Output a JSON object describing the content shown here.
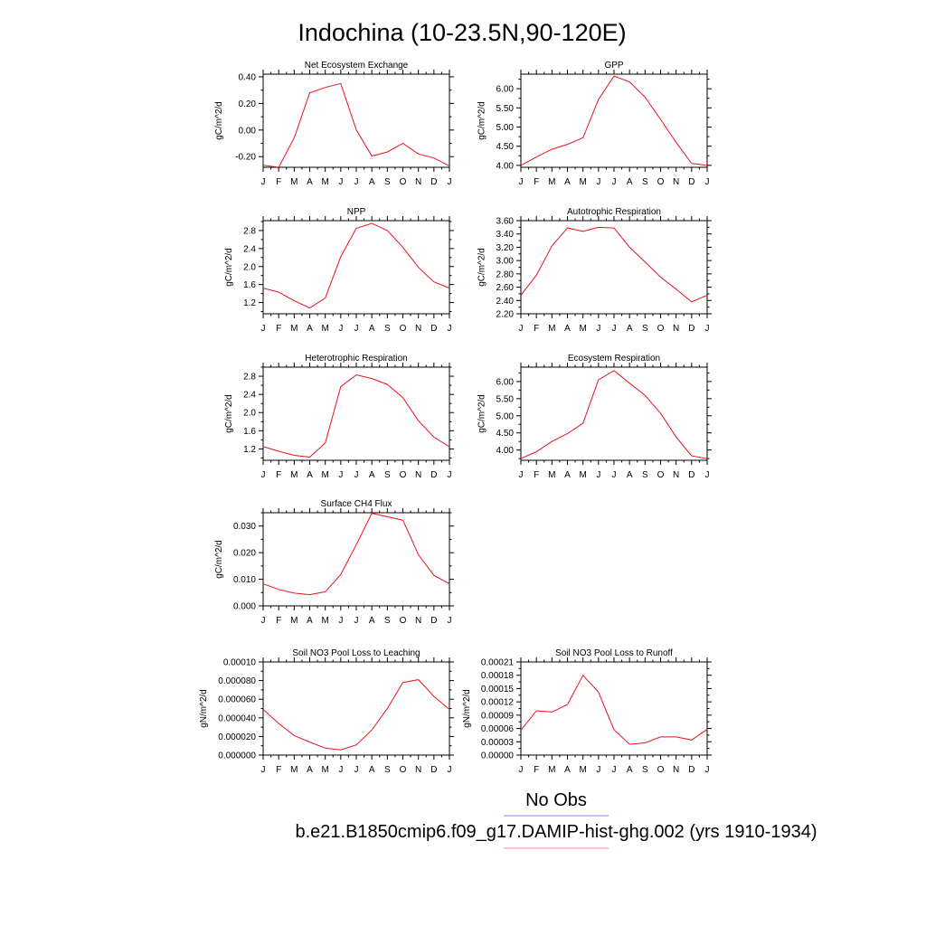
{
  "figure": {
    "title": "Indochina (10-23.5N,90-120E)",
    "month_ticks": [
      "J",
      "F",
      "M",
      "A",
      "M",
      "J",
      "J",
      "A",
      "S",
      "O",
      "N",
      "D",
      "J"
    ],
    "line_color": "#e8141c"
  },
  "legend": {
    "obs_label": "No Obs",
    "obs_color": "#7b8cf2",
    "model_label": "b.e21.B1850cmip6.f09_g17.DAMIP-hist-ghg.002 (yrs 1910-1934)",
    "model_color": "#f08d8d"
  },
  "chart_data": [
    {
      "type": "line",
      "title": "Net Ecosystem Exchange",
      "ylabel": "gC/m^2/d",
      "ylim": [
        -0.28,
        0.42
      ],
      "yticks": [
        "0.40",
        "0.20",
        "0.00",
        "-0.20"
      ],
      "ytick_values": [
        0.4,
        0.2,
        0.0,
        -0.2
      ],
      "series": [
        {
          "values": [
            -0.265,
            -0.28,
            -0.06,
            0.28,
            0.32,
            0.35,
            0.0,
            -0.195,
            -0.165,
            -0.1,
            -0.18,
            -0.21,
            -0.27
          ]
        }
      ]
    },
    {
      "type": "line",
      "title": "GPP",
      "ylabel": "gC/m^2/d",
      "ylim": [
        3.95,
        6.38
      ],
      "yticks": [
        "6.00",
        "5.50",
        "5.00",
        "4.50",
        "4.00"
      ],
      "ytick_values": [
        6.0,
        5.5,
        5.0,
        4.5,
        4.0
      ],
      "series": [
        {
          "values": [
            4.0,
            4.22,
            4.42,
            4.55,
            4.72,
            5.72,
            6.33,
            6.18,
            5.78,
            5.2,
            4.6,
            4.05,
            4.0
          ]
        }
      ]
    },
    {
      "type": "line",
      "title": "NPP",
      "ylabel": "gC/m^2/d",
      "ylim": [
        0.95,
        3.02
      ],
      "yticks": [
        "2.8",
        "2.4",
        "2.0",
        "1.6",
        "1.2"
      ],
      "ytick_values": [
        2.8,
        2.4,
        2.0,
        1.6,
        1.2
      ],
      "series": [
        {
          "values": [
            1.52,
            1.43,
            1.24,
            1.08,
            1.3,
            2.22,
            2.85,
            2.96,
            2.8,
            2.43,
            1.98,
            1.66,
            1.52
          ]
        }
      ]
    },
    {
      "type": "line",
      "title": "Autotrophic Respiration",
      "ylabel": "gC/m^2/d",
      "ylim": [
        2.2,
        3.6
      ],
      "yticks": [
        "3.60",
        "3.40",
        "3.20",
        "3.00",
        "2.80",
        "2.60",
        "2.40",
        "2.20"
      ],
      "ytick_values": [
        3.6,
        3.4,
        3.2,
        3.0,
        2.8,
        2.6,
        2.4,
        2.2
      ],
      "series": [
        {
          "values": [
            2.48,
            2.78,
            3.22,
            3.49,
            3.44,
            3.5,
            3.49,
            3.2,
            2.98,
            2.75,
            2.57,
            2.38,
            2.48
          ]
        }
      ]
    },
    {
      "type": "line",
      "title": "Heterotrophic Respiration",
      "ylabel": "gC/m^2/d",
      "ylim": [
        0.95,
        3.0
      ],
      "yticks": [
        "2.8",
        "2.4",
        "2.0",
        "1.6",
        "1.2"
      ],
      "ytick_values": [
        2.8,
        2.4,
        2.0,
        1.6,
        1.2
      ],
      "series": [
        {
          "values": [
            1.25,
            1.15,
            1.06,
            1.02,
            1.33,
            2.57,
            2.83,
            2.75,
            2.62,
            2.33,
            1.82,
            1.46,
            1.25
          ]
        }
      ]
    },
    {
      "type": "line",
      "title": "Ecosystem Respiration",
      "ylabel": "gC/m^2/d",
      "ylim": [
        3.7,
        6.42
      ],
      "yticks": [
        "6.00",
        "5.50",
        "5.00",
        "4.50",
        "4.00"
      ],
      "ytick_values": [
        6.0,
        5.5,
        5.0,
        4.5,
        4.0
      ],
      "series": [
        {
          "values": [
            3.75,
            3.95,
            4.25,
            4.48,
            4.78,
            6.05,
            6.32,
            5.95,
            5.6,
            5.07,
            4.38,
            3.83,
            3.75
          ]
        }
      ]
    },
    {
      "type": "line",
      "title": "Surface CH4 Flux",
      "ylabel": "gC/m^2/d",
      "ylim": [
        0.0,
        0.035
      ],
      "yticks": [
        "0.030",
        "0.020",
        "0.010",
        "0.000"
      ],
      "ytick_values": [
        0.03,
        0.02,
        0.01,
        0.0
      ],
      "series": [
        {
          "values": [
            0.0083,
            0.0062,
            0.0048,
            0.0042,
            0.0053,
            0.0118,
            0.023,
            0.0348,
            0.0335,
            0.0322,
            0.0192,
            0.0115,
            0.0083
          ]
        }
      ]
    },
    {
      "type": "line",
      "title": "Soil NO3 Pool Loss to Leaching",
      "ylabel": "gN/m^2/d",
      "ylim": [
        0.0,
        0.0001
      ],
      "yticks": [
        "0.00010",
        "0.000080",
        "0.000060",
        "0.000040",
        "0.000020",
        "0.000000"
      ],
      "ytick_values": [
        0.0001,
        8e-05,
        6e-05,
        4e-05,
        2e-05,
        0.0
      ],
      "series": [
        {
          "values": [
            4.9e-05,
            3.4e-05,
            2.1e-05,
            1.4e-05,
            7.5e-06,
            5.5e-06,
            1.1e-05,
            2.7e-05,
            5e-05,
            7.8e-05,
            8.1e-05,
            6.3e-05,
            4.9e-05
          ]
        }
      ]
    },
    {
      "type": "line",
      "title": "Soil NO3 Pool Loss to Runoff",
      "ylabel": "gN/m^2/d",
      "ylim": [
        0.0,
        0.00021
      ],
      "yticks": [
        "0.00021",
        "0.00018",
        "0.00015",
        "0.00012",
        "0.00009",
        "0.00006",
        "0.00003",
        "0.00000"
      ],
      "ytick_values": [
        0.00021,
        0.00018,
        0.00015,
        0.00012,
        9e-05,
        6e-05,
        3e-05,
        0.0
      ],
      "series": [
        {
          "values": [
            5.6e-05,
            0.0001,
            9.7e-05,
            0.000114,
            0.00018,
            0.000142,
            5.7e-05,
            2.45e-05,
            2.75e-05,
            4.1e-05,
            4.1e-05,
            3.4e-05,
            5.8e-05
          ]
        }
      ]
    }
  ]
}
